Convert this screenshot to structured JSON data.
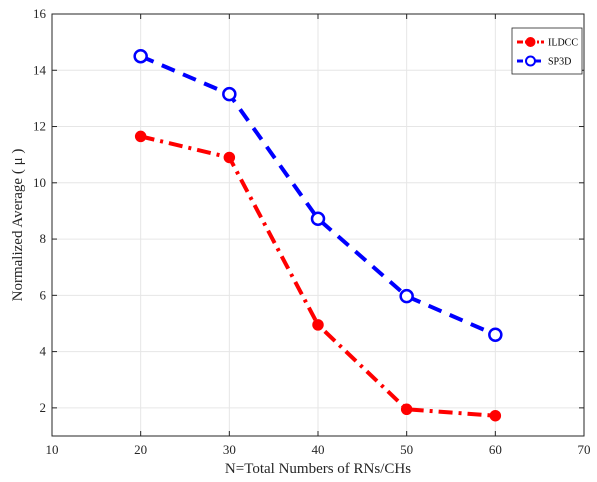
{
  "chart_data": {
    "type": "line",
    "title": "",
    "xlabel": "N=Total Numbers of RNs/CHs",
    "ylabel": "Normalized Average ( μ )",
    "xlim": [
      10,
      70
    ],
    "ylim": [
      1,
      16
    ],
    "xticks": [
      10,
      20,
      30,
      40,
      50,
      60,
      70
    ],
    "yticks": [
      2,
      4,
      6,
      8,
      10,
      12,
      14,
      16
    ],
    "grid": true,
    "legend_position": "top-right",
    "x": [
      20,
      30,
      40,
      50,
      60
    ],
    "series": [
      {
        "name": "ILDCC",
        "values": [
          11.65,
          10.9,
          4.95,
          1.95,
          1.72
        ],
        "color": "#ff0000",
        "line_style": "dash-dot",
        "marker": "filled-circle"
      },
      {
        "name": "SP3D",
        "values": [
          14.5,
          13.15,
          8.72,
          5.97,
          4.6
        ],
        "color": "#0000ff",
        "line_style": "dashed",
        "marker": "open-circle"
      }
    ]
  }
}
